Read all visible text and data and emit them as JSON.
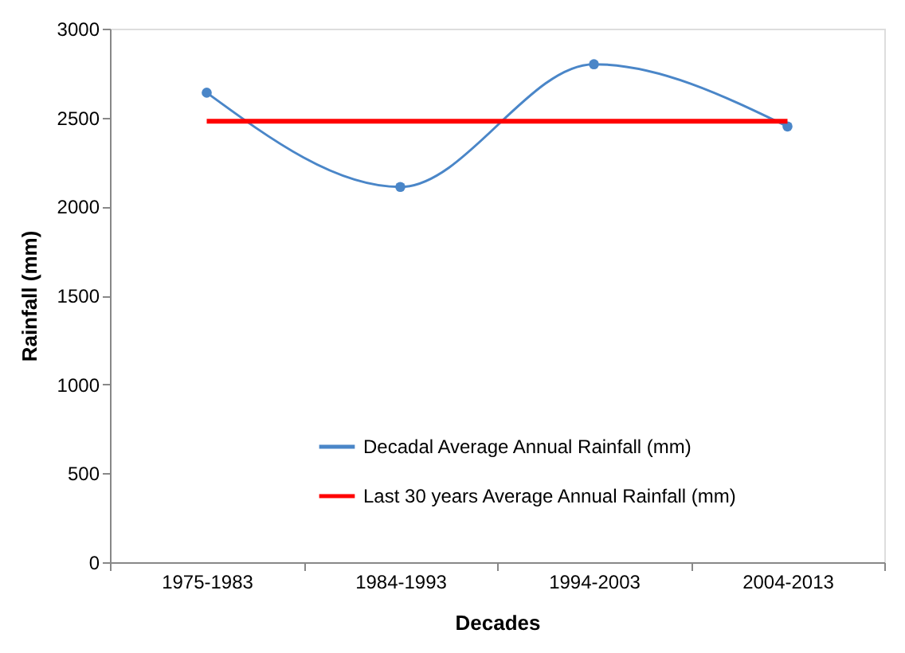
{
  "chart_data": {
    "type": "line",
    "xlabel": "Decades",
    "ylabel": "Rainfall (mm)",
    "categories": [
      "1975-1983",
      "1984-1993",
      "1994-2003",
      "2004-2013"
    ],
    "series": [
      {
        "name": "Decadal Average Annual Rainfall (mm)",
        "color": "#4a86c8",
        "values": [
          2640,
          2110,
          2800,
          2450
        ],
        "marker": "circle"
      },
      {
        "name": "Last 30 years Average Annual Rainfall (mm)",
        "color": "#ff0000",
        "values": [
          2480,
          2480,
          2480,
          2480
        ],
        "marker": "none"
      }
    ],
    "ylim": [
      0,
      3000
    ],
    "yticks": [
      0,
      500,
      1000,
      1500,
      2000,
      2500,
      3000
    ],
    "grid": false,
    "legend": "bottom right"
  }
}
